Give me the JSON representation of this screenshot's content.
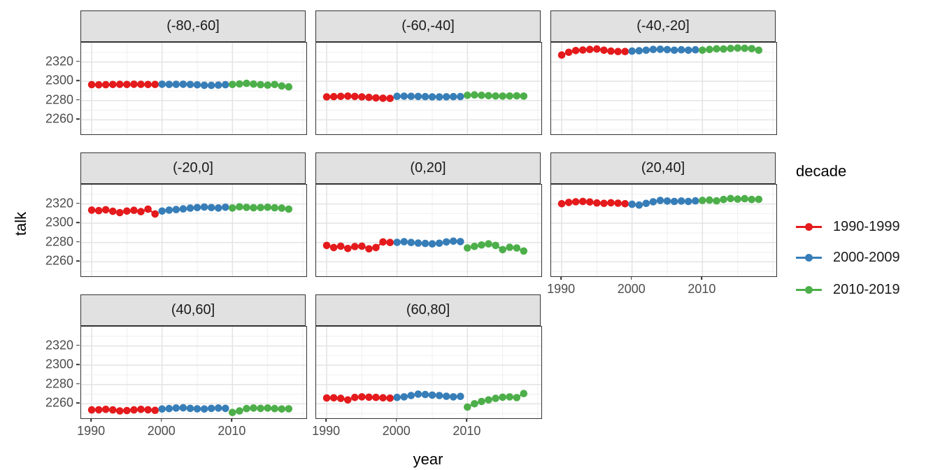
{
  "figure": {
    "x_axis_title": "year",
    "y_axis_title": "talk"
  },
  "legend": {
    "title": "decade",
    "entries": [
      {
        "label": "1990-1999",
        "color": "#E41A1C"
      },
      {
        "label": "2000-2009",
        "color": "#377EB8"
      },
      {
        "label": "2010-2019",
        "color": "#4DAF4A"
      }
    ]
  },
  "chart_data": {
    "type": "line",
    "title": "",
    "xlabel": "year",
    "ylabel": "talk",
    "legend_title": "decade",
    "legend_position": "right",
    "grid": true,
    "xlim": [
      1988.5,
      2020.5
    ],
    "ylim": [
      2245,
      2340
    ],
    "x_ticks": [
      1990,
      2000,
      2010
    ],
    "y_ticks": [
      2320,
      2300,
      2280,
      2260
    ],
    "x_minor_breaks": [
      1995,
      2005,
      2015,
      2020
    ],
    "y_minor_breaks": [
      2250,
      2270,
      2290,
      2310,
      2330
    ],
    "point_and_line": true,
    "facets": [
      {
        "label": "(-80,-60]",
        "series": [
          {
            "name": "1990-1999",
            "color": "#E41A1C",
            "start_year": 1990,
            "values": [
              2296.5,
              2296.3,
              2296.4,
              2296.6,
              2296.8,
              2296.6,
              2296.9,
              2296.8,
              2296.6,
              2296.7
            ]
          },
          {
            "name": "2000-2009",
            "color": "#377EB8",
            "start_year": 2000,
            "values": [
              2296.9,
              2296.7,
              2296.8,
              2296.9,
              2296.6,
              2296.3,
              2295.8,
              2295.7,
              2296.0,
              2296.4
            ]
          },
          {
            "name": "2010-2019",
            "color": "#4DAF4A",
            "start_year": 2010,
            "values": [
              2296.6,
              2297.2,
              2297.8,
              2297.1,
              2296.4,
              2296.0,
              2296.6,
              2295.1,
              2294.2
            ]
          }
        ]
      },
      {
        "label": "(-60,-40]",
        "series": [
          {
            "name": "1990-1999",
            "color": "#E41A1C",
            "start_year": 1990,
            "values": [
              2283.8,
              2284.0,
              2284.3,
              2284.6,
              2284.2,
              2283.8,
              2283.3,
              2282.8,
              2282.4,
              2282.2
            ]
          },
          {
            "name": "2000-2009",
            "color": "#377EB8",
            "start_year": 2000,
            "values": [
              2284.4,
              2284.5,
              2284.4,
              2284.2,
              2284.0,
              2283.8,
              2283.7,
              2283.9,
              2284.0,
              2284.1
            ]
          },
          {
            "name": "2010-2019",
            "color": "#4DAF4A",
            "start_year": 2010,
            "values": [
              2285.4,
              2285.8,
              2285.4,
              2285.0,
              2284.7,
              2284.6,
              2284.7,
              2284.9,
              2284.6
            ]
          }
        ]
      },
      {
        "label": "(-40,-20]",
        "series": [
          {
            "name": "1990-1999",
            "color": "#E41A1C",
            "start_year": 1990,
            "values": [
              2327.2,
              2330.0,
              2331.8,
              2332.4,
              2333.0,
              2333.4,
              2332.2,
              2331.2,
              2330.8,
              2330.8
            ]
          },
          {
            "name": "2000-2009",
            "color": "#377EB8",
            "start_year": 2000,
            "values": [
              2331.2,
              2331.6,
              2332.2,
              2333.0,
              2333.2,
              2332.8,
              2332.2,
              2332.6,
              2332.2,
              2332.6
            ]
          },
          {
            "name": "2010-2019",
            "color": "#4DAF4A",
            "start_year": 2010,
            "values": [
              2332.2,
              2333.0,
              2333.6,
              2333.4,
              2334.0,
              2334.4,
              2334.2,
              2333.8,
              2332.2
            ]
          }
        ]
      },
      {
        "label": "(-20,0]",
        "series": [
          {
            "name": "1990-1999",
            "color": "#E41A1C",
            "start_year": 1990,
            "values": [
              2313.6,
              2313.0,
              2314.0,
              2312.4,
              2311.0,
              2312.6,
              2313.4,
              2312.0,
              2314.6,
              2309.6
            ]
          },
          {
            "name": "2000-2009",
            "color": "#377EB8",
            "start_year": 2000,
            "values": [
              2312.6,
              2313.6,
              2314.2,
              2314.8,
              2315.6,
              2316.2,
              2316.8,
              2316.2,
              2315.8,
              2316.6
            ]
          },
          {
            "name": "2010-2019",
            "color": "#4DAF4A",
            "start_year": 2010,
            "values": [
              2315.8,
              2317.0,
              2316.4,
              2316.0,
              2316.2,
              2316.6,
              2316.0,
              2315.6,
              2314.6
            ]
          }
        ]
      },
      {
        "label": "(0,20]",
        "series": [
          {
            "name": "1990-1999",
            "color": "#E41A1C",
            "start_year": 1990,
            "values": [
              2277.0,
              2274.8,
              2276.2,
              2273.8,
              2275.8,
              2276.2,
              2273.4,
              2274.8,
              2280.6,
              2280.0
            ]
          },
          {
            "name": "2000-2009",
            "color": "#377EB8",
            "start_year": 2000,
            "values": [
              2280.2,
              2280.8,
              2280.0,
              2279.4,
              2279.0,
              2278.6,
              2279.2,
              2280.6,
              2281.4,
              2281.0
            ]
          },
          {
            "name": "2010-2019",
            "color": "#4DAF4A",
            "start_year": 2010,
            "values": [
              2274.4,
              2276.0,
              2277.4,
              2278.6,
              2277.0,
              2272.6,
              2275.0,
              2274.4,
              2271.2
            ]
          }
        ]
      },
      {
        "label": "(20,40]",
        "series": [
          {
            "name": "1990-1999",
            "color": "#E41A1C",
            "start_year": 1990,
            "values": [
              2320.2,
              2321.6,
              2322.2,
              2322.6,
              2322.0,
              2321.0,
              2320.6,
              2321.2,
              2320.8,
              2320.2
            ]
          },
          {
            "name": "2000-2009",
            "color": "#377EB8",
            "start_year": 2000,
            "values": [
              2319.6,
              2318.8,
              2320.6,
              2322.2,
              2323.6,
              2323.0,
              2322.6,
              2323.0,
              2322.6,
              2323.2
            ]
          },
          {
            "name": "2010-2019",
            "color": "#4DAF4A",
            "start_year": 2010,
            "values": [
              2323.6,
              2324.0,
              2323.2,
              2324.6,
              2325.6,
              2325.0,
              2325.4,
              2324.6,
              2324.8
            ]
          }
        ]
      },
      {
        "label": "(40,60]",
        "series": [
          {
            "name": "1990-1999",
            "color": "#E41A1C",
            "start_year": 1990,
            "values": [
              2253.6,
              2253.8,
              2254.2,
              2253.6,
              2252.6,
              2253.0,
              2253.6,
              2254.2,
              2253.8,
              2253.2
            ]
          },
          {
            "name": "2000-2009",
            "color": "#377EB8",
            "start_year": 2000,
            "values": [
              2254.6,
              2255.0,
              2255.6,
              2255.8,
              2255.2,
              2254.8,
              2254.6,
              2255.2,
              2255.6,
              2255.2
            ]
          },
          {
            "name": "2010-2019",
            "color": "#4DAF4A",
            "start_year": 2010,
            "values": [
              2251.0,
              2252.6,
              2255.0,
              2255.6,
              2255.2,
              2255.6,
              2255.0,
              2254.6,
              2254.8
            ]
          }
        ]
      },
      {
        "label": "(60,80]",
        "series": [
          {
            "name": "1990-1999",
            "color": "#E41A1C",
            "start_year": 1990,
            "values": [
              2266.0,
              2266.2,
              2265.6,
              2264.0,
              2266.6,
              2267.2,
              2266.8,
              2266.6,
              2266.2,
              2265.8
            ]
          },
          {
            "name": "2000-2009",
            "color": "#377EB8",
            "start_year": 2000,
            "values": [
              2266.6,
              2267.2,
              2268.6,
              2270.0,
              2269.6,
              2269.0,
              2268.6,
              2267.8,
              2267.2,
              2267.6
            ]
          },
          {
            "name": "2010-2019",
            "color": "#4DAF4A",
            "start_year": 2010,
            "values": [
              2256.6,
              2260.0,
              2262.4,
              2264.0,
              2265.6,
              2266.8,
              2267.2,
              2266.4,
              2270.6
            ]
          }
        ]
      }
    ],
    "style": {
      "strip_fill": "#e1e1e1",
      "panel_border": "#333333",
      "grid_major": "#e3e3e3",
      "grid_minor": "#f0f0f0",
      "tick_text": "#4d4d4d"
    }
  }
}
